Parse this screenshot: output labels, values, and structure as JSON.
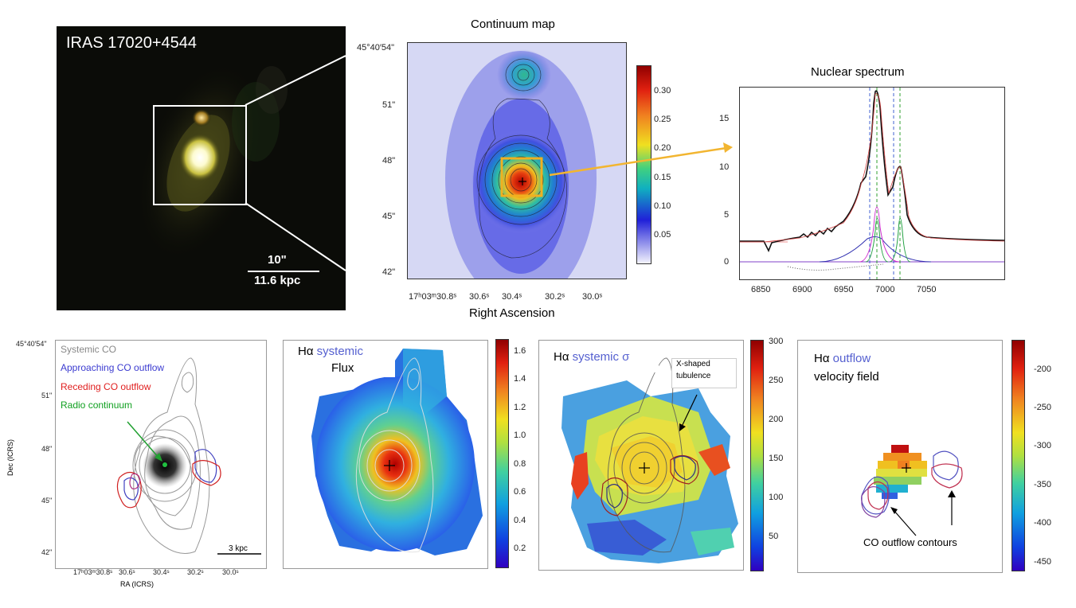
{
  "optical": {
    "title": "IRAS 17020+4544",
    "scale_top": "10\"",
    "scale_bottom": "11.6 kpc"
  },
  "continuum": {
    "title": "Continuum map",
    "xlabel": "Right Ascension",
    "yticks": [
      "45°40′54\"",
      "51\"",
      "48\"",
      "45\"",
      "42\""
    ],
    "xticks": [
      "17ʰ03ᵐ30.8ˢ",
      "30.6ˢ",
      "30.4ˢ",
      "30.2ˢ",
      "30.0ˢ"
    ],
    "colorbar": [
      "0.30",
      "0.25",
      "0.20",
      "0.15",
      "0.10",
      "0.05"
    ]
  },
  "spectrum": {
    "title": "Nuclear spectrum",
    "yticks": [
      "15",
      "10",
      "5",
      "0"
    ],
    "xticks": [
      "6850",
      "6900",
      "6950",
      "7000",
      "7050"
    ]
  },
  "co_panel": {
    "legend": [
      {
        "label": "Systemic CO",
        "color": "#888888"
      },
      {
        "label": "Approaching CO outflow",
        "color": "#3b3bd0"
      },
      {
        "label": "Receding CO outflow",
        "color": "#e02020"
      },
      {
        "label": "Radio continuum",
        "color": "#10a020"
      }
    ],
    "ylabel": "Dec (ICRS)",
    "xlabel": "RA (ICRS)",
    "yticks": [
      "45°40′54\"",
      "51\"",
      "48\"",
      "45\"",
      "42\""
    ],
    "xticks": [
      "17ʰ03ᵐ30.8ˢ",
      "30.6ˢ",
      "30.4ˢ",
      "30.2ˢ",
      "30.0ˢ"
    ],
    "scalebar": "3 kpc"
  },
  "flux_panel": {
    "title_a": "Hα ",
    "title_b": "systemic",
    "title_c": "Flux",
    "colorbar": [
      "1.6",
      "1.4",
      "1.2",
      "1.0",
      "0.8",
      "0.6",
      "0.4",
      "0.2"
    ]
  },
  "sigma_panel": {
    "title_a": "Hα ",
    "title_b": "systemic σ",
    "annotation_a": "X-shaped",
    "annotation_b": "tubulence",
    "colorbar": [
      "300",
      "250",
      "200",
      "150",
      "100",
      "50"
    ]
  },
  "outflow_panel": {
    "title_a": "Hα ",
    "title_b": "outflow",
    "title_c": "velocity field",
    "annotation": "CO outflow contours",
    "colorbar": [
      "-200",
      "-250",
      "-300",
      "-350",
      "-400",
      "-450"
    ]
  }
}
